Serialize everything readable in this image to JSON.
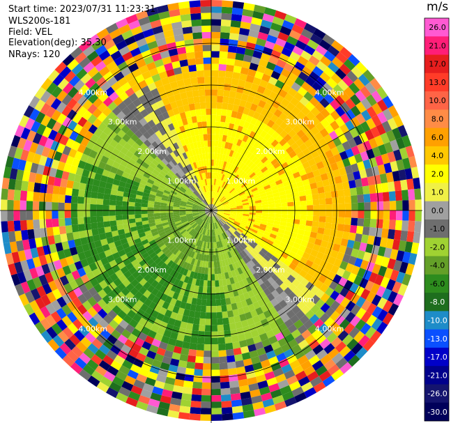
{
  "header": {
    "start_time": "Start time: 2023/07/31 11:23:31",
    "instrument": "WLS200s-181",
    "field": "Field: VEL",
    "elevation": "Elevation(deg): 35.30",
    "nrays": "NRays: 120"
  },
  "range_rings": {
    "labels": [
      "1.00km",
      "2.00km",
      "3.00km",
      "4.00km"
    ]
  },
  "colorbar": {
    "unit": "m/s",
    "ticks": [
      "26.0",
      "21.0",
      "17.0",
      "13.0",
      "10.0",
      "8.0",
      "6.0",
      "4.0",
      "2.0",
      "1.0",
      "0.0",
      "-1.0",
      "-2.0",
      "-4.0",
      "-6.0",
      "-8.0",
      "-10.0",
      "-13.0",
      "-17.0",
      "-21.0",
      "-26.0",
      "-30.0"
    ],
    "colors": [
      "#ff5ad2",
      "#ff1e78",
      "#e61e1e",
      "#ff3c28",
      "#ff6446",
      "#ff8c46",
      "#ffa000",
      "#ffc800",
      "#ffff00",
      "#f0f046",
      "#a0a0a0",
      "#6e6e6e",
      "#a0d232",
      "#64a028",
      "#2d8c1e",
      "#1e6e1e",
      "#1e8cc8",
      "#0a50ff",
      "#0000c8",
      "#00008c",
      "#14146e",
      "#00005a"
    ]
  },
  "map": {
    "rays": 120,
    "gates": 33
  }
}
